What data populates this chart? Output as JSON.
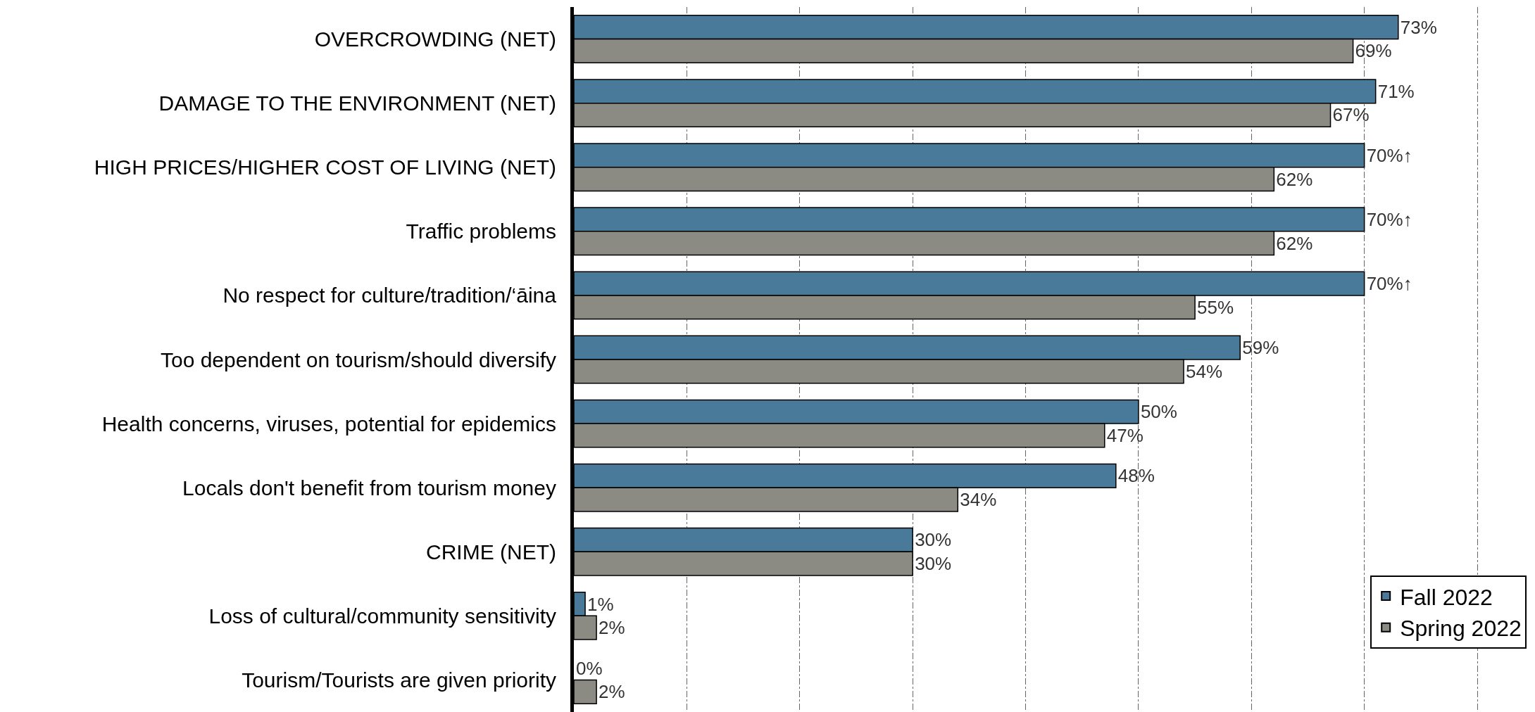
{
  "chart_data": {
    "type": "bar",
    "orientation": "horizontal",
    "categories": [
      "OVERCROWDING (NET)",
      "DAMAGE TO THE ENVIRONMENT (NET)",
      "HIGH PRICES/HIGHER COST OF LIVING (NET)",
      "Traffic problems",
      "No respect for culture/tradition/‘āina",
      "Too dependent on tourism/should diversify",
      "Health concerns, viruses, potential for epidemics",
      "Locals don't benefit from tourism money",
      "CRIME (NET)",
      "Loss of cultural/community sensitivity",
      "Tourism/Tourists are given priority"
    ],
    "series": [
      {
        "name": "Fall 2022",
        "color": "#4a7a9a",
        "values": [
          73,
          71,
          70,
          70,
          70,
          59,
          50,
          48,
          30,
          1,
          0
        ],
        "value_labels": [
          "73%",
          "71%",
          "70%↑",
          "70%↑",
          "70%↑",
          "59%",
          "50%",
          "48%",
          "30%",
          "1%",
          "0%"
        ]
      },
      {
        "name": "Spring 2022",
        "color": "#8b8b83",
        "values": [
          69,
          67,
          62,
          62,
          55,
          54,
          47,
          34,
          30,
          2,
          2
        ],
        "value_labels": [
          "69%",
          "67%",
          "62%",
          "62%",
          "55%",
          "54%",
          "47%",
          "34%",
          "30%",
          "2%",
          "2%"
        ]
      }
    ],
    "xlim": [
      0,
      84.8
    ],
    "xticks": [
      {
        "value": 10,
        "label": null
      },
      {
        "value": 20,
        "label": null
      },
      {
        "value": 30,
        "label": null
      },
      {
        "value": 40,
        "label": null
      },
      {
        "value": 50,
        "label": null
      },
      {
        "value": 60,
        "label": null
      },
      {
        "value": 70,
        "label": null
      },
      {
        "value": 80,
        "label": null
      }
    ],
    "tick_labels": "y",
    "grid": "x",
    "legend": "bottom right"
  }
}
